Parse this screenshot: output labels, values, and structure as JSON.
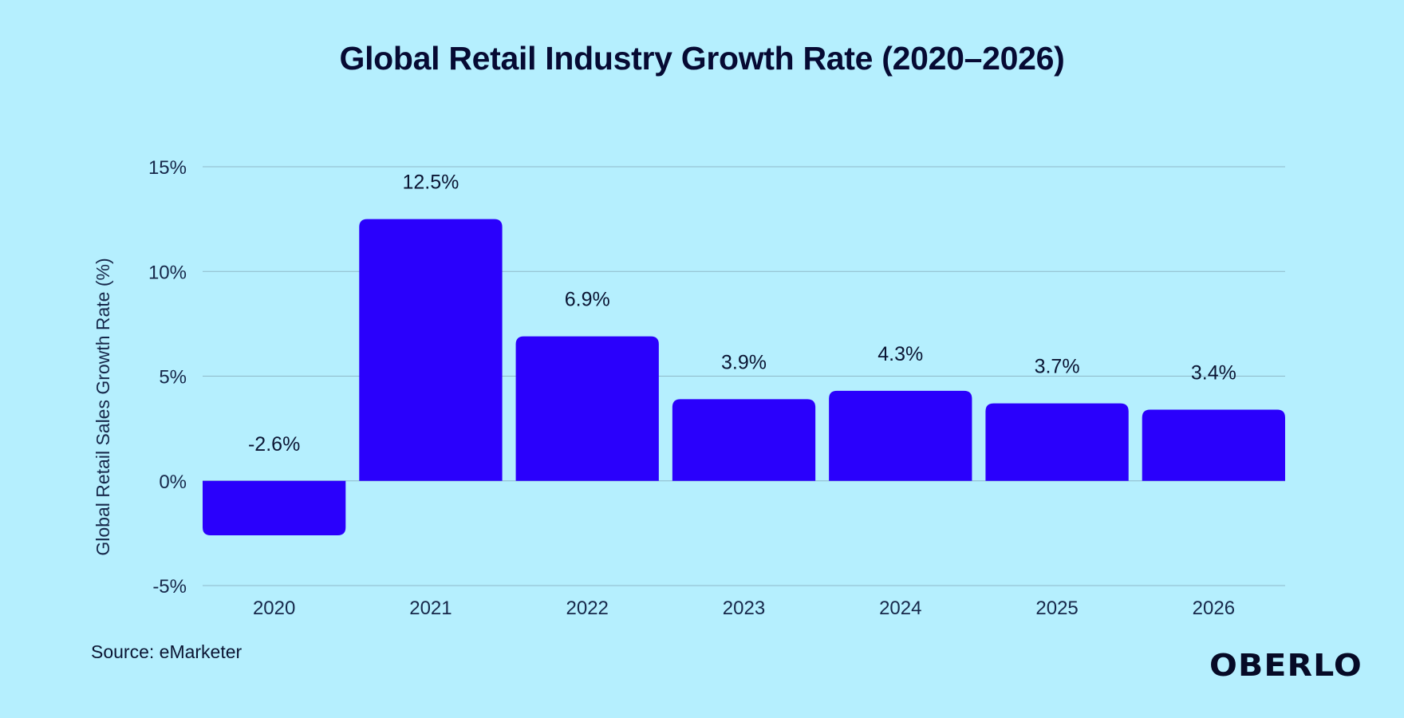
{
  "header": {
    "title": "Global Retail Industry Growth Rate (2020–2026)"
  },
  "footer": {
    "source": "Source: eMarketer",
    "logo": "OBERLO"
  },
  "colors": {
    "bar": "#2a00fc",
    "background": "#b5effe",
    "grid": "#8fb9c9"
  },
  "chart_data": {
    "type": "bar",
    "title": "Global Retail Industry Growth Rate (2020–2026)",
    "xlabel": "",
    "ylabel": "Global Retail Sales Growth Rate (%)",
    "categories": [
      "2020",
      "2021",
      "2022",
      "2023",
      "2024",
      "2025",
      "2026"
    ],
    "values": [
      -2.6,
      12.5,
      6.9,
      3.9,
      4.3,
      3.7,
      3.4
    ],
    "data_labels": [
      "-2.6%",
      "12.5%",
      "6.9%",
      "3.9%",
      "4.3%",
      "3.7%",
      "3.4%"
    ],
    "ylim": [
      -5,
      15
    ],
    "yticks": [
      -5,
      0,
      5,
      10,
      15
    ],
    "ytick_labels": [
      "-5%",
      "0%",
      "5%",
      "10%",
      "15%"
    ],
    "grid": true,
    "legend": "none"
  }
}
